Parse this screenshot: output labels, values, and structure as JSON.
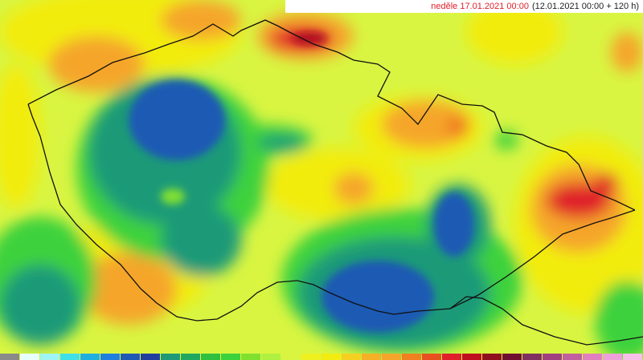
{
  "header": {
    "date": "neděle 17.01.2021 00:00",
    "run": "(12.01.2021 00:00 + 120 h)"
  }
}
